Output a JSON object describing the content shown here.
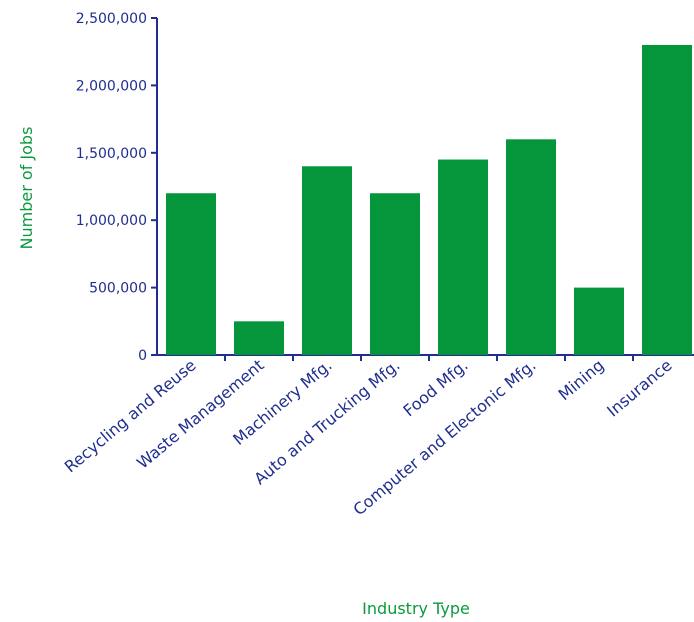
{
  "chart_data": {
    "type": "bar",
    "title": "",
    "xlabel": "Industry Type",
    "ylabel": "Number of Jobs",
    "categories": [
      "Recycling and Reuse",
      "Waste Management",
      "Machinery Mfg.",
      "Auto and Trucking Mfg.",
      "Food Mfg.",
      "Computer and Electonic Mfg.",
      "Mining",
      "Insurance"
    ],
    "values": [
      1200000,
      250000,
      1400000,
      1200000,
      1450000,
      1600000,
      500000,
      2300000
    ],
    "ylim": [
      0,
      2500000
    ],
    "yticks": [
      0,
      500000,
      1000000,
      1500000,
      2000000,
      2500000
    ],
    "ytick_labels": [
      "0",
      "500,000",
      "1,000,000",
      "1,500,000",
      "2,000,000",
      "2,500,000"
    ],
    "grid": false,
    "legend": "none"
  },
  "colors": {
    "bar": "#05963c",
    "axis": "#1f2e8f",
    "tick_text": "#1f2e8f",
    "axis_title": "#0a9a3e"
  }
}
